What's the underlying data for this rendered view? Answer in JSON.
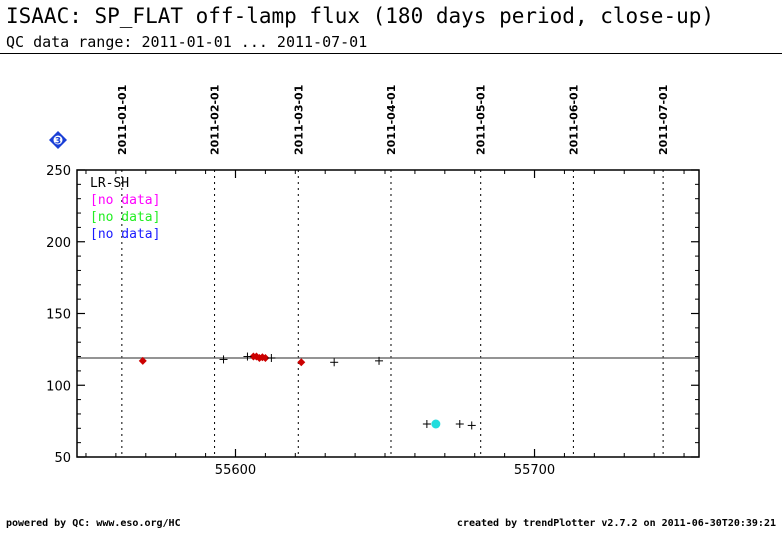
{
  "header": {
    "title": "ISAAC: SP_FLAT off-lamp flux (180 days period, close-up)",
    "subtitle": "QC data range: 2011-01-01 ... 2011-07-01"
  },
  "footer": {
    "left": "powered by QC: www.eso.org/HC",
    "right": "created by trendPlotter v2.7.2 on 2011-06-30T20:39:21"
  },
  "badge": {
    "label": "3",
    "color": "#1a3fd6"
  },
  "chart_data": {
    "type": "scatter",
    "xlim": [
      55547,
      55755
    ],
    "ylim": [
      50,
      250
    ],
    "xticks": [
      55600,
      55700
    ],
    "yticks": [
      50,
      100,
      150,
      200,
      250
    ],
    "date_lines": [
      {
        "label": "2011-01-01",
        "x": 55562
      },
      {
        "label": "2011-02-01",
        "x": 55593
      },
      {
        "label": "2011-03-01",
        "x": 55621
      },
      {
        "label": "2011-04-01",
        "x": 55652
      },
      {
        "label": "2011-05-01",
        "x": 55682
      },
      {
        "label": "2011-06-01",
        "x": 55713
      },
      {
        "label": "2011-07-01",
        "x": 55743
      }
    ],
    "reference_line": 119,
    "legend": [
      {
        "text": "LR-SH",
        "color": "#000000"
      },
      {
        "text": "[no data]",
        "color": "#ff00ff"
      },
      {
        "text": "[no data]",
        "color": "#22ee22"
      },
      {
        "text": "[no data]",
        "color": "#1a1aff"
      }
    ],
    "series": [
      {
        "marker": "diamond",
        "color": "#cc0000",
        "points": [
          [
            55569,
            117
          ],
          [
            55606,
            120
          ],
          [
            55607,
            120
          ],
          [
            55608,
            119
          ],
          [
            55609,
            119.5
          ],
          [
            55610,
            119
          ],
          [
            55622,
            116
          ]
        ]
      },
      {
        "marker": "plus",
        "color": "#000000",
        "points": [
          [
            55596,
            118
          ],
          [
            55604,
            120
          ],
          [
            55612,
            119
          ],
          [
            55633,
            116
          ],
          [
            55648,
            117
          ],
          [
            55664,
            73
          ],
          [
            55675,
            73
          ],
          [
            55679,
            72
          ]
        ]
      },
      {
        "marker": "circle",
        "color": "#22dddd",
        "points": [
          [
            55667,
            73
          ]
        ]
      }
    ]
  }
}
